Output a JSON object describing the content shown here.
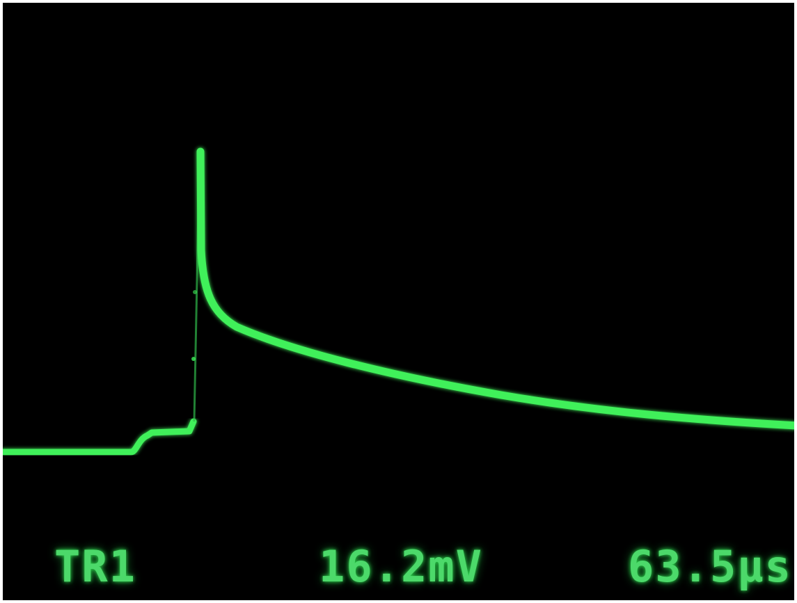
{
  "display": {
    "background_color": "#000000",
    "trace_color": "#3ff05a",
    "readouts": {
      "trigger": "TR1",
      "voltage": "16.2mV",
      "time": "63.5µs"
    }
  }
}
